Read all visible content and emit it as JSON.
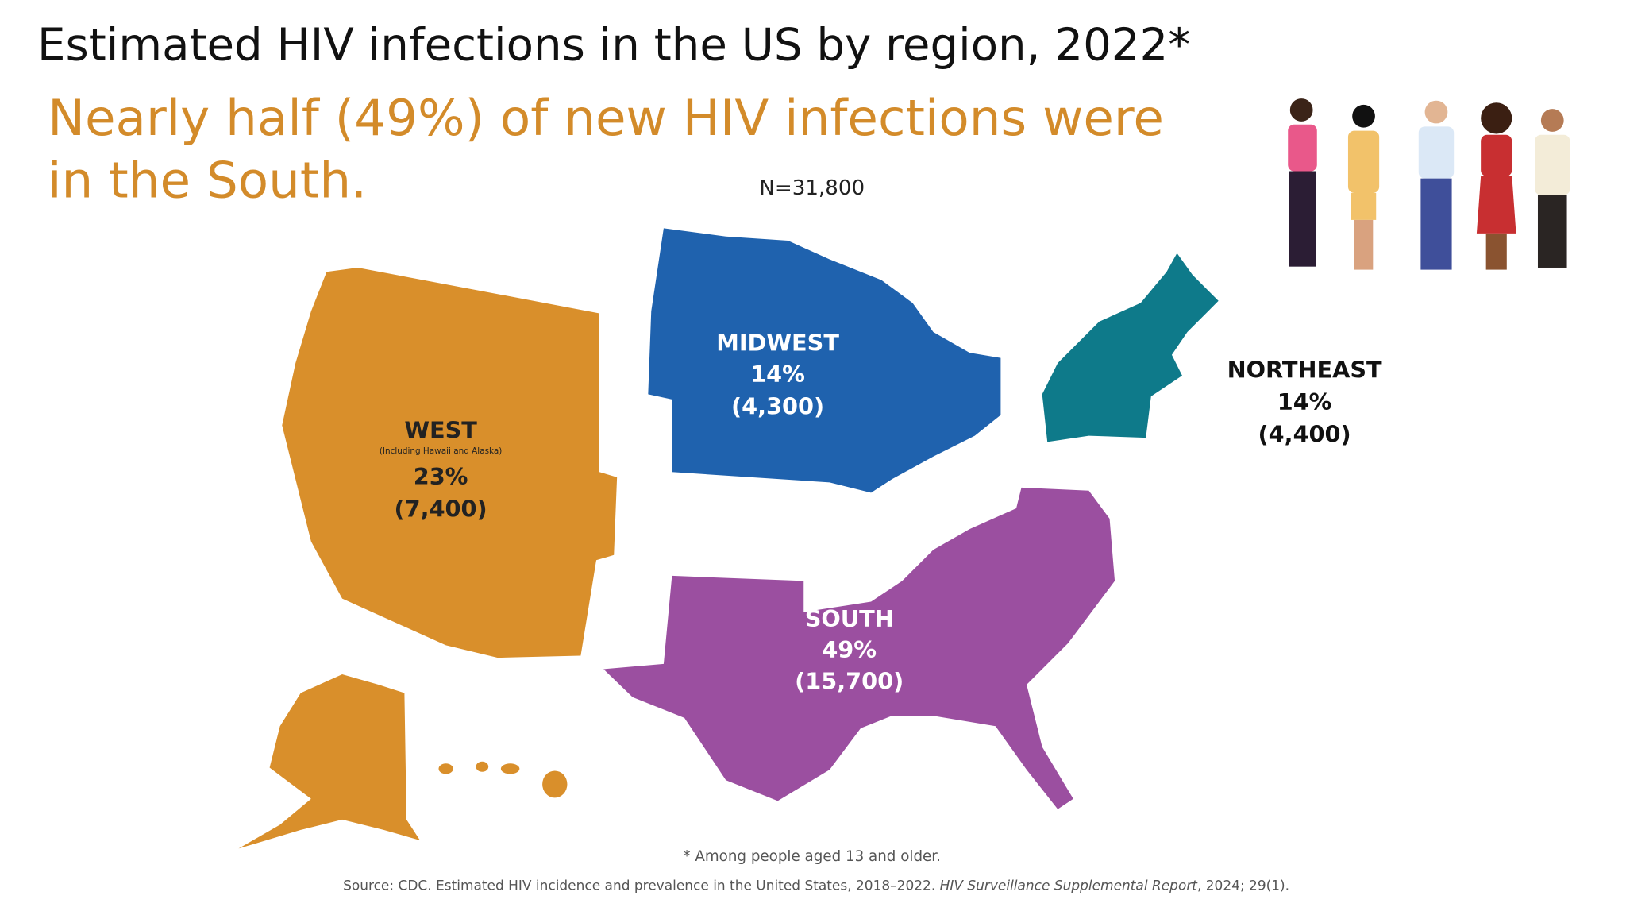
{
  "header": {
    "title": "Estimated HIV infections in the US by region, 2022*",
    "subtitle_lines": [
      "Nearly half (49%) of new HIV infections were",
      "in the South."
    ]
  },
  "map": {
    "total": "N=31,800",
    "regions": [
      {
        "name": "WEST",
        "note": "(Including Hawaii and Alaska)",
        "percent": "23%",
        "count": "(7,400)"
      },
      {
        "name": "MIDWEST",
        "percent": "14%",
        "count": "(4,300)"
      },
      {
        "name": "NORTHEAST",
        "percent": "14%",
        "count": "(4,400)"
      },
      {
        "name": "SOUTH",
        "percent": "49%",
        "count": "(15,700)"
      }
    ]
  },
  "footer": {
    "footnote": "* Among people aged 13 and older.",
    "source": [
      "Source: CDC. Estimated HIV incidence and prevalence in the United States, 2018–2022. ",
      "HIV Surveillance Supplemental Report",
      ", 2024; 29(1)."
    ]
  }
}
